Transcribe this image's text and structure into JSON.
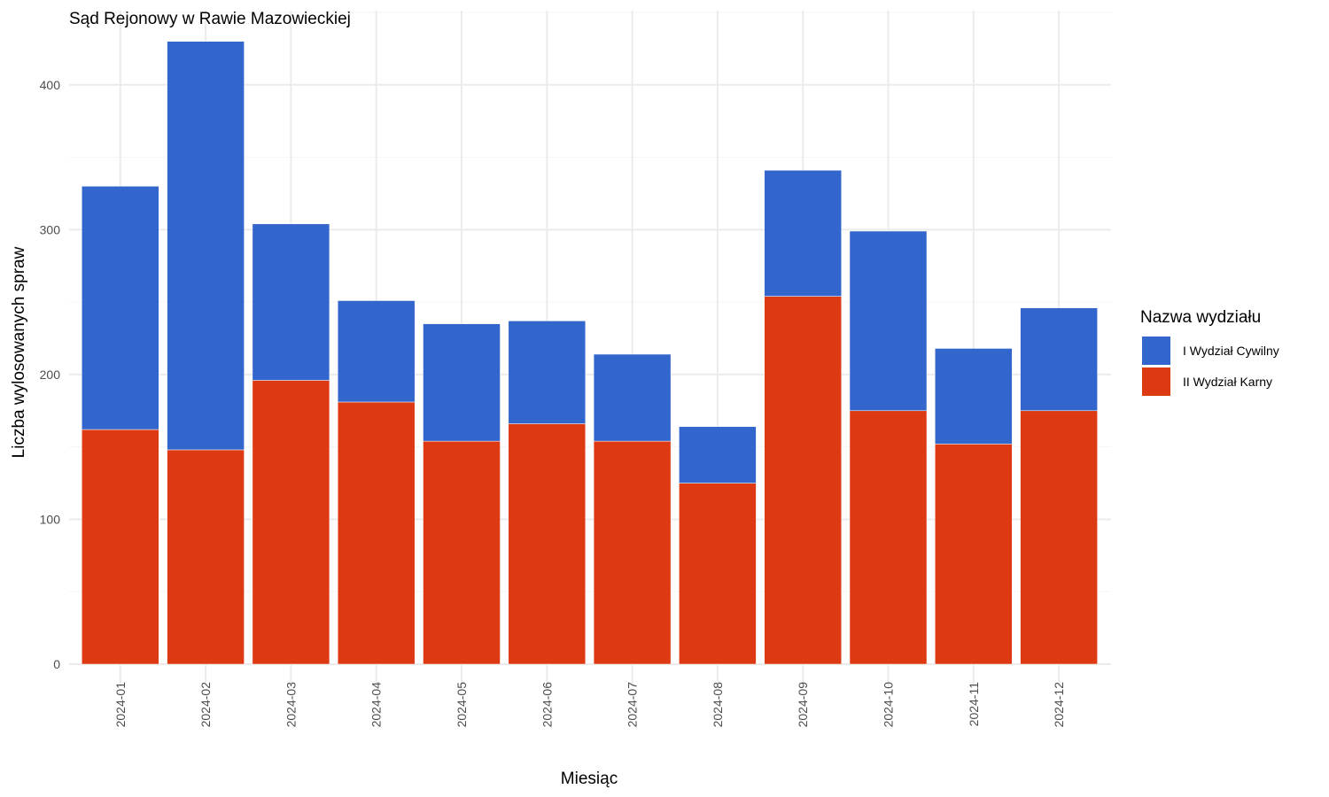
{
  "chart_data": {
    "type": "bar",
    "stacked": true,
    "title": "Sąd Rejonowy w Rawie Mazowieckiej",
    "xlabel": "Miesiąc",
    "ylabel": "Liczba wylosowanych spraw",
    "ylim": [
      0,
      430
    ],
    "yticks": [
      0,
      100,
      200,
      300,
      400
    ],
    "categories": [
      "2024-01",
      "2024-02",
      "2024-03",
      "2024-04",
      "2024-05",
      "2024-06",
      "2024-07",
      "2024-08",
      "2024-09",
      "2024-10",
      "2024-11",
      "2024-12"
    ],
    "legend": {
      "title": "Nazwa wydziału",
      "position": "right"
    },
    "grid": true,
    "series": [
      {
        "name": "II Wydział Karny",
        "color": "#DD3913",
        "values": [
          162,
          148,
          196,
          181,
          154,
          166,
          154,
          125,
          254,
          175,
          152,
          175
        ]
      },
      {
        "name": "I Wydział Cywilny",
        "color": "#3266CC",
        "values": [
          168,
          282,
          108,
          70,
          81,
          71,
          60,
          39,
          87,
          124,
          66,
          71
        ]
      }
    ],
    "legend_order": [
      "I Wydział Cywilny",
      "II Wydział Karny"
    ]
  }
}
